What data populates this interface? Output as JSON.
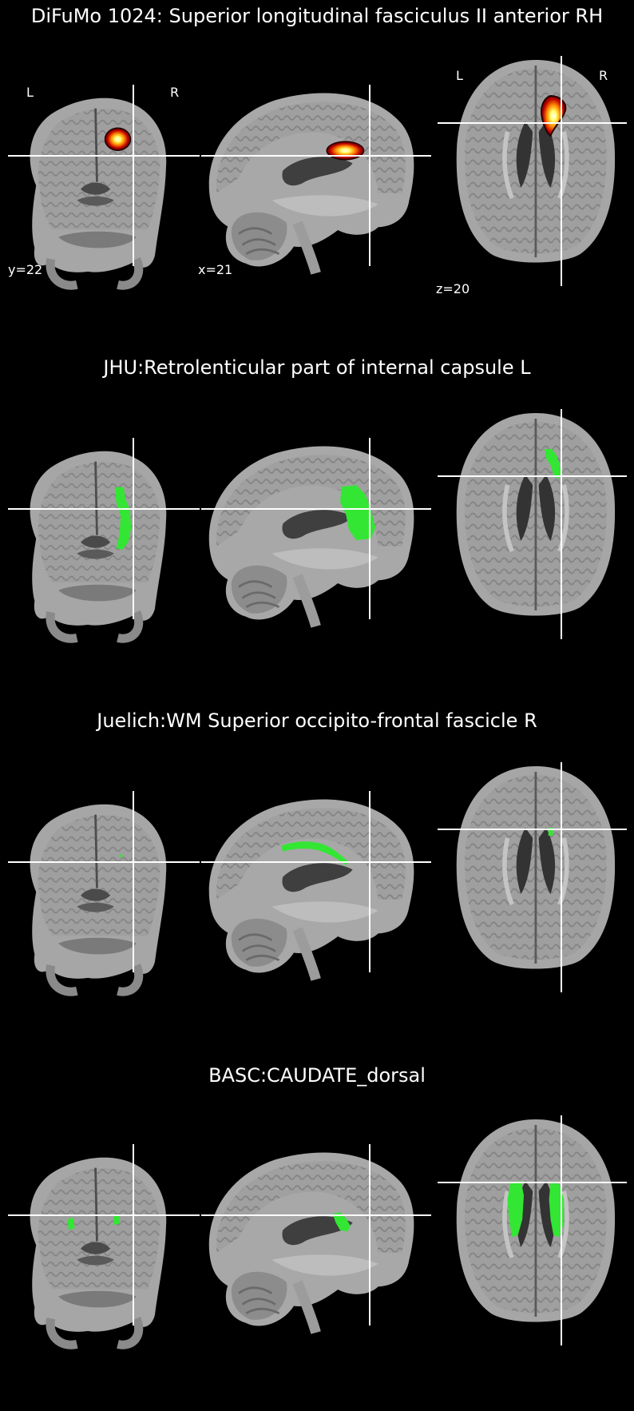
{
  "panels": [
    {
      "title": "DiFuMo 1024: Superior longitudinal fasciculus II anterior RH",
      "overlay": "hot",
      "orientation": {
        "left": "L",
        "right": "R"
      },
      "coords": {
        "coronal": "y=22",
        "sagittal": "x=21",
        "axial": "z=20"
      }
    },
    {
      "title": "JHU:Retrolenticular part of internal capsule L",
      "overlay": "green-a"
    },
    {
      "title": "Juelich:WM Superior occipito-frontal fascicle R",
      "overlay": "green-b"
    },
    {
      "title": "BASC:CAUDATE_dorsal",
      "overlay": "green-c"
    }
  ],
  "colors": {
    "background": "#000000",
    "crosshair": "#ffffff",
    "roi_green": "#33e633",
    "hot_outer": "#b30000",
    "hot_mid": "#ff6a00",
    "hot_inner": "#ffff66",
    "brain_dark": "#5c5c5c",
    "brain_mid": "#8f8f8f",
    "brain_light": "#b4b4b4"
  }
}
